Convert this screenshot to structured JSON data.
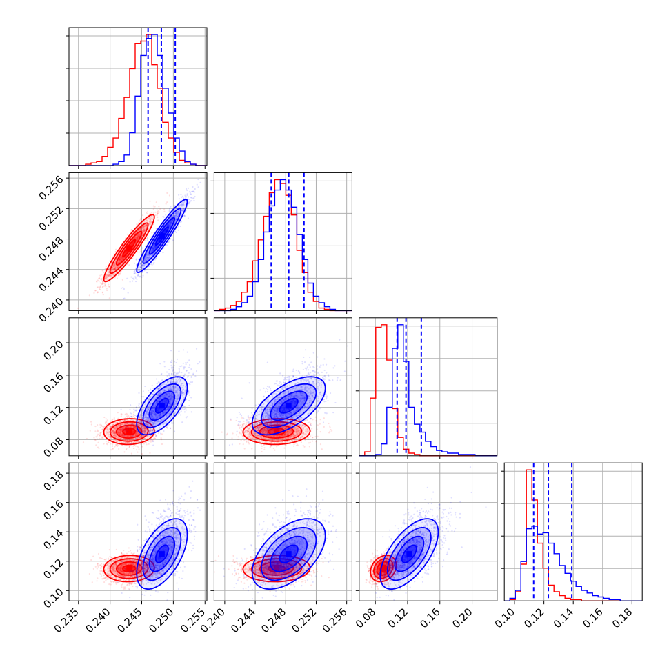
{
  "chart_data": {
    "type": "corner",
    "n_params": 4,
    "grid": true,
    "series": [
      {
        "color": "#ff0000"
      },
      {
        "color": "#0000ff"
      }
    ],
    "quantile_line_color": "#0000ff",
    "axes": {
      "x_ticks": [
        [
          "0.235",
          "0.240",
          "0.245",
          "0.250",
          "0.255"
        ],
        [
          "0.240",
          "0.244",
          "0.248",
          "0.252",
          "0.256"
        ],
        [
          "0.08",
          "0.12",
          "0.16",
          "0.20"
        ],
        [
          "0.10",
          "0.12",
          "0.14",
          "0.16",
          "0.18"
        ]
      ],
      "y_ticks": [
        [],
        [
          "0.240",
          "0.244",
          "0.248",
          "0.252",
          "0.256"
        ],
        [
          "0.08",
          "0.12",
          "0.16",
          "0.20"
        ],
        [
          "0.10",
          "0.12",
          "0.14",
          "0.16",
          "0.18"
        ]
      ]
    },
    "ranges": [
      [
        0.2335,
        0.2553
      ],
      [
        0.2386,
        0.2567
      ],
      [
        0.06,
        0.231
      ],
      [
        0.093,
        0.187
      ]
    ],
    "quantiles": [
      [
        0.246,
        0.2481,
        0.2503
      ],
      [
        0.2461,
        0.2484,
        0.2504
      ],
      [
        0.107,
        0.118,
        0.137
      ],
      [
        0.113,
        0.123,
        0.139
      ]
    ],
    "distributions": [
      {
        "name": "red",
        "mean": [
          0.243,
          0.2468,
          0.09,
          0.115
        ],
        "sd": [
          0.002,
          0.0022,
          0.008,
          0.0045
        ],
        "corr": [
          [
            1.0,
            0.93,
            0.05,
            0.05
          ],
          [
            0.93,
            1.0,
            0.05,
            0.05
          ],
          [
            0.05,
            0.05,
            1.0,
            0.25
          ],
          [
            0.05,
            0.05,
            0.25,
            1.0
          ]
        ],
        "hist": [
          [
            0,
            0,
            0,
            0.01,
            0.02,
            0.03,
            0.07,
            0.14,
            0.21,
            0.36,
            0.52,
            0.74,
            0.93,
            0.95,
            1.0,
            0.77,
            0.59,
            0.33,
            0.21,
            0.1,
            0.04,
            0.02,
            0.01,
            0,
            0
          ],
          [
            0,
            0.01,
            0.02,
            0.04,
            0.07,
            0.14,
            0.22,
            0.38,
            0.54,
            0.72,
            0.9,
            1.0,
            0.97,
            0.88,
            0.73,
            0.46,
            0.29,
            0.14,
            0.07,
            0.02,
            0.01,
            0,
            0,
            0,
            0
          ],
          [
            0,
            0.03,
            0.44,
            0.98,
            1.0,
            0.73,
            0.36,
            0.14,
            0.05,
            0.02,
            0.01,
            0,
            0,
            0,
            0,
            0,
            0,
            0,
            0,
            0,
            0,
            0,
            0,
            0,
            0
          ],
          [
            0,
            0.01,
            0.07,
            0.28,
            1.0,
            0.77,
            0.44,
            0.25,
            0.12,
            0.07,
            0.04,
            0.02,
            0.01,
            0.01,
            0,
            0,
            0,
            0,
            0,
            0,
            0,
            0,
            0,
            0,
            0
          ]
        ]
      },
      {
        "name": "blue",
        "mean": [
          0.2482,
          0.2484,
          0.122,
          0.125
        ],
        "sd": [
          0.002,
          0.0024,
          0.018,
          0.012
        ],
        "corr": [
          [
            1.0,
            0.94,
            0.62,
            0.55
          ],
          [
            0.94,
            1.0,
            0.6,
            0.52
          ],
          [
            0.62,
            0.6,
            1.0,
            0.62
          ],
          [
            0.55,
            0.52,
            0.62,
            1.0
          ]
        ],
        "hist": [
          [
            0,
            0,
            0,
            0,
            0,
            0,
            0,
            0,
            0.01,
            0.03,
            0.08,
            0.25,
            0.53,
            0.84,
            0.97,
            1.0,
            0.84,
            0.59,
            0.4,
            0.21,
            0.11,
            0.03,
            0.01,
            0,
            0
          ],
          [
            0,
            0,
            0,
            0.01,
            0.03,
            0.06,
            0.11,
            0.22,
            0.39,
            0.6,
            0.8,
            0.92,
            1.0,
            0.92,
            0.79,
            0.58,
            0.39,
            0.21,
            0.11,
            0.06,
            0.03,
            0.01,
            0,
            0,
            0
          ],
          [
            0,
            0,
            0,
            0.01,
            0.09,
            0.37,
            0.82,
            1.0,
            0.72,
            0.37,
            0.24,
            0.18,
            0.11,
            0.07,
            0.04,
            0.03,
            0.02,
            0.02,
            0.01,
            0.01,
            0.01,
            0,
            0,
            0,
            0
          ],
          [
            0,
            0.02,
            0.08,
            0.3,
            0.55,
            0.57,
            0.51,
            0.52,
            0.44,
            0.36,
            0.27,
            0.21,
            0.15,
            0.11,
            0.08,
            0.06,
            0.04,
            0.03,
            0.02,
            0.01,
            0.01,
            0,
            0,
            0,
            0
          ]
        ]
      }
    ]
  }
}
